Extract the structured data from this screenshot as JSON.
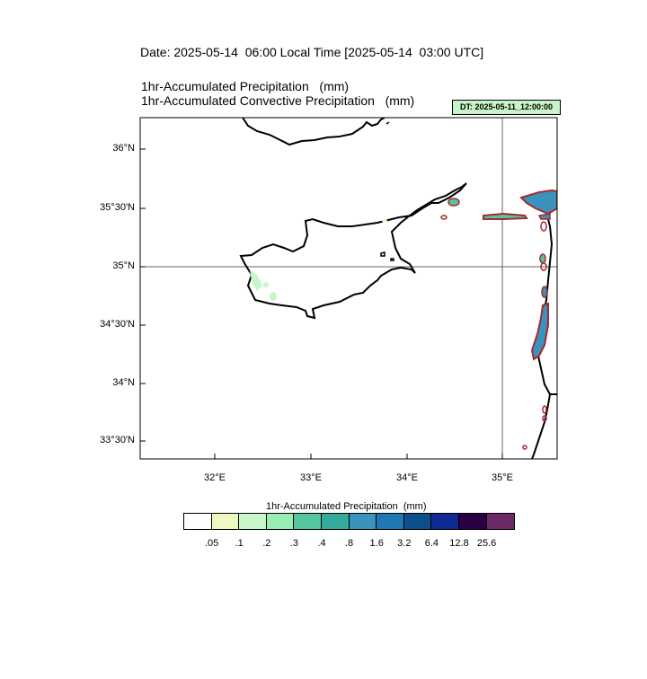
{
  "header": {
    "date_title": "Date: 2025-05-14  06:00 Local Time [2025-05-14  03:00 UTC]",
    "variable_1": "1hr-Accumulated Precipitation   (mm)",
    "variable_2": "1hr-Accumulated Convective Precipitation   (mm)",
    "dt_badge": "DT: 2025-05-11_12:00:00",
    "dt_badge_color": "#c8f5c8"
  },
  "map": {
    "region": "Cyprus",
    "lat_labels": [
      "36°N",
      "35°30'N",
      "35°N",
      "34°30'N",
      "34°N",
      "33°30'N"
    ],
    "lon_labels": [
      "32°E",
      "33°E",
      "34°E",
      "35°E"
    ],
    "reference_lines": {
      "lat": "35°N",
      "lon": "35°E"
    },
    "coastline_color": "#000000",
    "convective_contour_color": "#a52a2a"
  },
  "colorbar": {
    "title": "1hr-Accumulated Precipitation  (mm)",
    "colors": [
      "#ffffff",
      "#eef9c2",
      "#c9f6c9",
      "#98eeb2",
      "#56c6a2",
      "#33aa9a",
      "#3a93bd",
      "#1f77b4",
      "#0c4f8a",
      "#0f2a94",
      "#2a0045",
      "#6b2a63"
    ],
    "ticks": [
      ".05",
      ".1",
      ".2",
      ".3",
      ".4",
      ".8",
      "1.6",
      "3.2",
      "6.4",
      "12.8",
      "25.6"
    ]
  }
}
